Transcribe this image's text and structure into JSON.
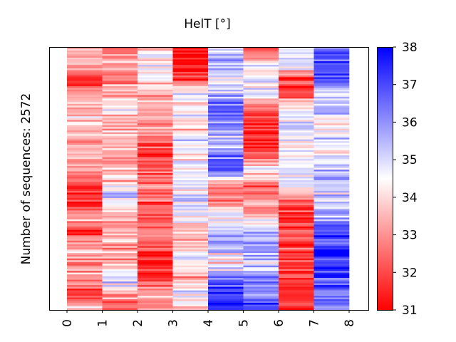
{
  "chart_data": {
    "type": "heatmap",
    "title": "HelT [°]",
    "ylabel": "Number of sequences: 2572",
    "xlabel": "",
    "x_ticks": [
      "0",
      "1",
      "2",
      "3",
      "4",
      "5",
      "6",
      "7",
      "8"
    ],
    "n_rows": 2572,
    "colorbar": {
      "min": 31,
      "max": 38,
      "ticks": [
        31,
        32,
        33,
        34,
        35,
        36,
        37,
        38
      ],
      "colormap": "bwr_reversed",
      "low_color": "#ff0000",
      "mid_color": "#ffffff",
      "high_color": "#0000ff"
    },
    "column_profiles": [
      [
        32.8,
        33.6,
        31.6,
        33.2,
        33.3,
        33.8,
        33.4,
        33.5,
        33.0,
        31.3,
        31.4,
        33.4,
        31.3,
        33.5,
        33.3,
        33.6,
        31.5,
        33.3
      ],
      [
        32.8,
        33.2,
        33.0,
        33.4,
        34.2,
        33.3,
        33.2,
        33.0,
        33.4,
        34.2,
        35.3,
        33.4,
        33.5,
        33.8,
        33.3,
        35.4,
        33.2,
        32.7
      ],
      [
        33.7,
        34.1,
        34.4,
        33.4,
        33.2,
        33.1,
        32.8,
        31.5,
        32.3,
        32.6,
        32.6,
        32.3,
        32.8,
        32.0,
        31.7,
        32.0,
        32.8,
        33.2
      ],
      [
        31.3,
        31.2,
        31.5,
        34.6,
        34.3,
        33.7,
        35.1,
        34.3,
        35.0,
        34.8,
        34.9,
        34.5,
        33.5,
        34.1,
        34.5,
        33.2,
        35.0,
        34.0
      ],
      [
        35.3,
        35.4,
        34.6,
        35.1,
        37.2,
        36.1,
        35.4,
        36.2,
        36.8,
        33.2,
        32.5,
        34.6,
        35.6,
        35.2,
        34.2,
        36.7,
        37.0,
        37.5
      ],
      [
        31.6,
        34.4,
        34.7,
        34.4,
        32.3,
        31.4,
        31.3,
        32.0,
        34.4,
        31.8,
        33.3,
        33.4,
        35.4,
        35.8,
        34.6,
        36.4,
        35.6,
        37.3
      ],
      [
        35.0,
        35.2,
        31.5,
        31.8,
        34.2,
        35.0,
        34.6,
        34.8,
        35.1,
        34.3,
        32.4,
        31.7,
        31.8,
        32.0,
        31.6,
        32.3,
        31.7,
        31.6
      ],
      [
        36.3,
        36.8,
        37.2,
        35.3,
        35.4,
        34.0,
        35.0,
        34.2,
        35.6,
        35.3,
        35.2,
        35.5,
        37.1,
        37.2,
        37.3,
        37.2,
        36.2,
        36.6
      ]
    ]
  }
}
